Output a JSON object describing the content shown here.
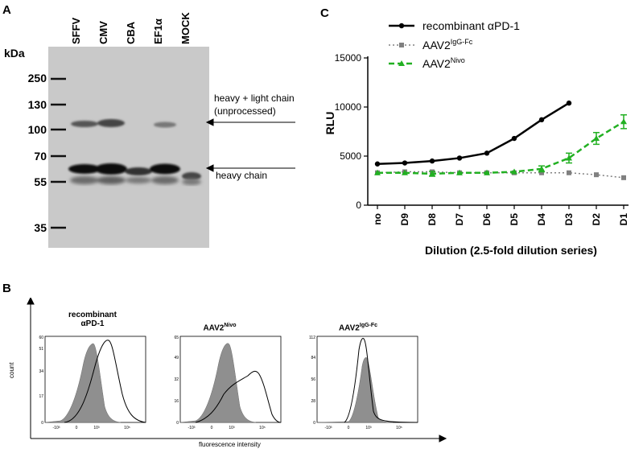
{
  "panel_a": {
    "letter": "A",
    "kda_label": "kDa",
    "lanes": [
      "SFFV",
      "CMV",
      "CBA",
      "EF1α",
      "MOCK"
    ],
    "markers": [
      "250",
      "130",
      "100",
      "70",
      "55",
      "35"
    ],
    "annotations": {
      "upper_line1": "heavy + light chain",
      "upper_line2": "(unprocessed)",
      "lower": "heavy chain"
    }
  },
  "panel_b": {
    "letter": "B",
    "ylabel": "count",
    "xlabel": "fluorescence intensity",
    "plots": [
      {
        "title_line1": "recombinant",
        "title_line2": "αPD-1",
        "y_ticks": [
          "60",
          "51",
          "34",
          "17",
          "0"
        ]
      },
      {
        "title_base": "AAV2",
        "title_sup": "Nivo",
        "y_ticks": [
          "65",
          "49",
          "32",
          "16",
          "0"
        ]
      },
      {
        "title_base": "AAV2",
        "title_sup": "IgG-Fc",
        "y_ticks": [
          "112",
          "84",
          "56",
          "28",
          "0"
        ]
      }
    ],
    "x_ticks": [
      "-10³",
      "0",
      "10³",
      "10⁵"
    ]
  },
  "panel_c": {
    "letter": "C",
    "chart_data": {
      "type": "line",
      "ylabel": "RLU",
      "xlabel": "Dilution (2.5-fold dilution series)",
      "categories": [
        "no",
        "D9",
        "D8",
        "D7",
        "D6",
        "D5",
        "D4",
        "D3",
        "D2",
        "D1"
      ],
      "ylim": [
        0,
        15000
      ],
      "yticks": [
        0,
        5000,
        10000,
        15000
      ],
      "series": [
        {
          "name": "recombinant αPD-1",
          "color": "#000000",
          "values": [
            4200,
            4300,
            4500,
            4800,
            5300,
            6800,
            8700,
            10400,
            null,
            null
          ]
        },
        {
          "name_base": "AAV2",
          "name_sup": "IgG-Fc",
          "name": "AAV2IgG-Fc",
          "color": "#808080",
          "values": [
            3300,
            3400,
            3400,
            3300,
            3300,
            3300,
            3300,
            3300,
            3100,
            2800
          ]
        },
        {
          "name_base": "AAV2",
          "name_sup": "Nivo",
          "name": "AAV2Nivo",
          "color": "#22b022",
          "values": [
            3300,
            3300,
            3200,
            3300,
            3300,
            3400,
            3700,
            4800,
            6800,
            8500
          ],
          "errors": [
            0,
            0,
            250,
            0,
            0,
            0,
            300,
            500,
            600,
            700
          ]
        }
      ]
    }
  }
}
